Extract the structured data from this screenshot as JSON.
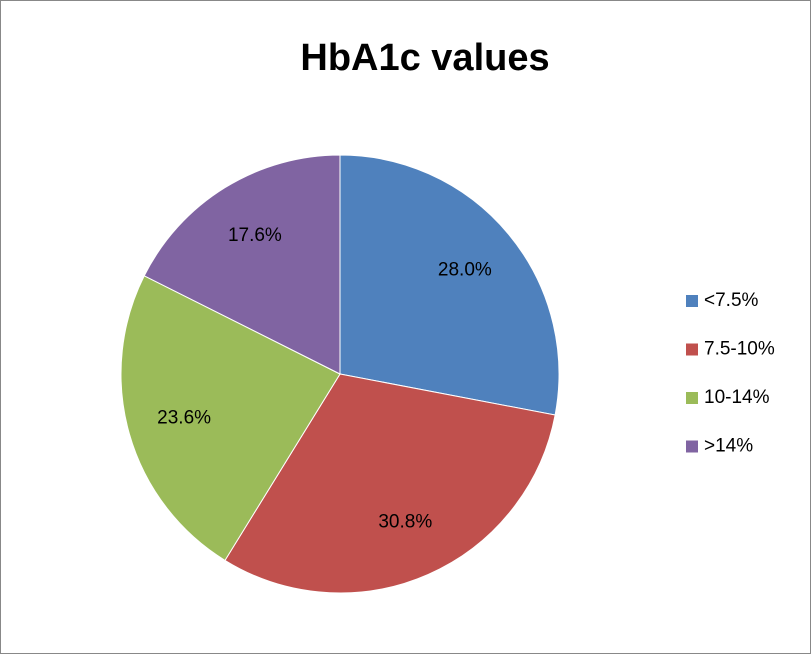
{
  "chart_data": {
    "type": "pie",
    "title": "HbA1c values",
    "categories": [
      "<7.5%",
      "7.5-10%",
      "10-14%",
      ">14%"
    ],
    "values": [
      28.0,
      30.8,
      23.6,
      17.6
    ],
    "value_labels": [
      "28.0%",
      "30.8%",
      "23.6%",
      "17.6%"
    ],
    "colors": [
      "#4f81bd",
      "#c0504d",
      "#9bbb59",
      "#8064a2"
    ],
    "legend": "right"
  }
}
